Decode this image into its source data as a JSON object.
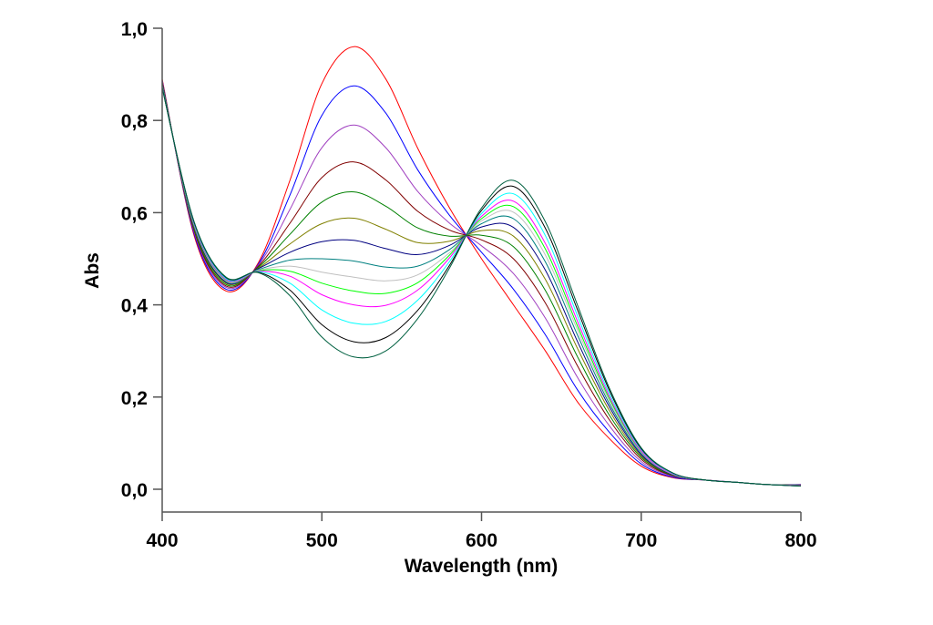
{
  "chart_data": {
    "type": "line",
    "title": "",
    "xlabel": "Wavelength (nm)",
    "ylabel": "Abs",
    "xlim": [
      400,
      800
    ],
    "ylim": [
      -0.05,
      1.0
    ],
    "grid": false,
    "legend": "none",
    "xticks": [
      400,
      500,
      600,
      700,
      800
    ],
    "xtick_labels": [
      "400",
      "500",
      "600",
      "700",
      "800"
    ],
    "yticks": [
      0,
      0.2,
      0.4,
      0.6,
      0.8,
      1.0
    ],
    "ytick_labels": [
      "0,0",
      "0,2",
      "0,4",
      "0,6",
      "0,8",
      "1,0"
    ],
    "x": [
      400,
      420,
      440,
      460,
      480,
      500,
      520,
      540,
      560,
      580,
      600,
      620,
      640,
      660,
      680,
      700,
      720,
      740,
      760,
      780,
      800
    ],
    "series": [
      {
        "color": "#ff0000",
        "values": [
          0.89,
          0.55,
          0.43,
          0.49,
          0.67,
          0.88,
          0.96,
          0.89,
          0.74,
          0.61,
          0.5,
          0.4,
          0.3,
          0.19,
          0.11,
          0.05,
          0.025,
          0.02,
          0.015,
          0.01,
          0.01
        ]
      },
      {
        "color": "#0000ff",
        "values": [
          0.887,
          0.554,
          0.434,
          0.487,
          0.638,
          0.811,
          0.875,
          0.816,
          0.693,
          0.594,
          0.514,
          0.434,
          0.335,
          0.216,
          0.124,
          0.055,
          0.026,
          0.02,
          0.015,
          0.01,
          0.01
        ]
      },
      {
        "color": "#a040c0",
        "values": [
          0.885,
          0.558,
          0.438,
          0.485,
          0.607,
          0.741,
          0.79,
          0.741,
          0.646,
          0.577,
          0.528,
          0.468,
          0.371,
          0.243,
          0.138,
          0.06,
          0.028,
          0.02,
          0.015,
          0.01,
          0.009
        ]
      },
      {
        "color": "#800000",
        "values": [
          0.883,
          0.561,
          0.441,
          0.483,
          0.577,
          0.676,
          0.71,
          0.671,
          0.603,
          0.562,
          0.541,
          0.5,
          0.404,
          0.268,
          0.151,
          0.065,
          0.029,
          0.02,
          0.015,
          0.01,
          0.009
        ]
      },
      {
        "color": "#008000",
        "values": [
          0.881,
          0.564,
          0.444,
          0.481,
          0.553,
          0.623,
          0.645,
          0.614,
          0.567,
          0.549,
          0.551,
          0.526,
          0.431,
          0.288,
          0.161,
          0.069,
          0.03,
          0.02,
          0.015,
          0.01,
          0.009
        ]
      },
      {
        "color": "#808000",
        "values": [
          0.879,
          0.567,
          0.447,
          0.479,
          0.532,
          0.576,
          0.588,
          0.564,
          0.535,
          0.538,
          0.561,
          0.549,
          0.455,
          0.306,
          0.171,
          0.072,
          0.031,
          0.02,
          0.015,
          0.01,
          0.008
        ]
      },
      {
        "color": "#000080",
        "values": [
          0.878,
          0.569,
          0.449,
          0.478,
          0.514,
          0.537,
          0.54,
          0.522,
          0.509,
          0.529,
          0.569,
          0.568,
          0.475,
          0.321,
          0.179,
          0.075,
          0.031,
          0.02,
          0.015,
          0.01,
          0.008
        ]
      },
      {
        "color": "#008080",
        "values": [
          0.876,
          0.571,
          0.451,
          0.476,
          0.497,
          0.5,
          0.495,
          0.482,
          0.484,
          0.52,
          0.576,
          0.587,
          0.493,
          0.335,
          0.186,
          0.078,
          0.032,
          0.02,
          0.015,
          0.01,
          0.008
        ]
      },
      {
        "color": "#c0c0c0",
        "values": [
          0.875,
          0.572,
          0.452,
          0.475,
          0.484,
          0.471,
          0.46,
          0.452,
          0.465,
          0.513,
          0.582,
          0.601,
          0.508,
          0.346,
          0.192,
          0.08,
          0.032,
          0.02,
          0.015,
          0.01,
          0.008
        ]
      },
      {
        "color": "#00ff00",
        "values": [
          0.874,
          0.574,
          0.454,
          0.474,
          0.473,
          0.447,
          0.43,
          0.425,
          0.448,
          0.508,
          0.587,
          0.613,
          0.521,
          0.355,
          0.197,
          0.082,
          0.033,
          0.02,
          0.015,
          0.01,
          0.008
        ]
      },
      {
        "color": "#ff00ff",
        "values": [
          0.873,
          0.575,
          0.455,
          0.473,
          0.462,
          0.422,
          0.4,
          0.399,
          0.432,
          0.502,
          0.592,
          0.625,
          0.533,
          0.365,
          0.202,
          0.083,
          0.033,
          0.02,
          0.015,
          0.01,
          0.008
        ]
      },
      {
        "color": "#00ffff",
        "values": [
          0.872,
          0.577,
          0.457,
          0.472,
          0.447,
          0.389,
          0.36,
          0.364,
          0.41,
          0.494,
          0.598,
          0.641,
          0.55,
          0.377,
          0.208,
          0.086,
          0.034,
          0.02,
          0.015,
          0.01,
          0.007
        ]
      },
      {
        "color": "#000000",
        "values": [
          0.871,
          0.579,
          0.459,
          0.471,
          0.432,
          0.357,
          0.32,
          0.329,
          0.388,
          0.486,
          0.605,
          0.657,
          0.566,
          0.39,
          0.215,
          0.088,
          0.035,
          0.02,
          0.015,
          0.01,
          0.007
        ]
      },
      {
        "color": "#006040",
        "values": [
          0.87,
          0.58,
          0.46,
          0.47,
          0.42,
          0.33,
          0.287,
          0.3,
          0.37,
          0.48,
          0.61,
          0.67,
          0.58,
          0.4,
          0.22,
          0.09,
          0.035,
          0.02,
          0.015,
          0.01,
          0.007
        ]
      }
    ]
  }
}
